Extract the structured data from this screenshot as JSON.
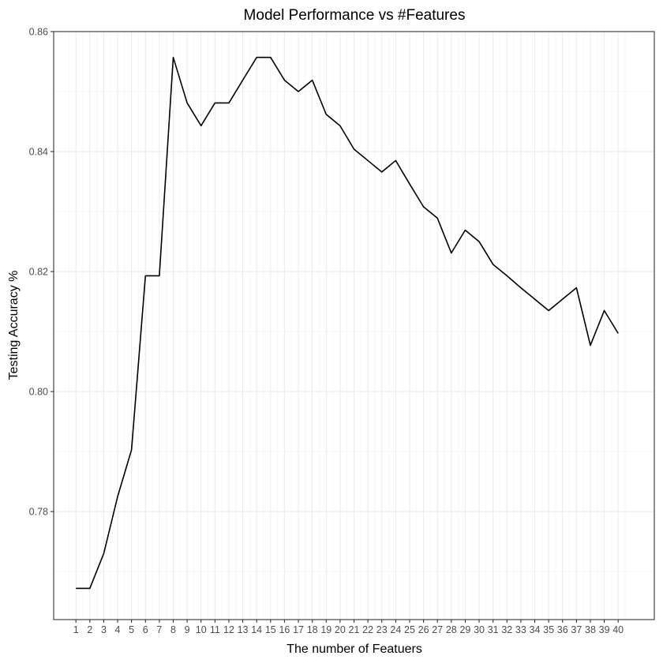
{
  "chart_data": {
    "type": "line",
    "title": "Model Performance vs #Features",
    "xlabel": "The number of Featuers",
    "ylabel": "Testing Accuracy %",
    "x": [
      1,
      2,
      3,
      4,
      5,
      6,
      7,
      8,
      9,
      10,
      11,
      12,
      13,
      14,
      15,
      16,
      17,
      18,
      19,
      20,
      21,
      22,
      23,
      24,
      25,
      26,
      27,
      28,
      29,
      30,
      31,
      32,
      33,
      34,
      35,
      36,
      37,
      38,
      39,
      40
    ],
    "series": [
      {
        "values": [
          0.7672,
          0.7672,
          0.773,
          0.7825,
          0.7903,
          0.8193,
          0.8193,
          0.8557,
          0.8481,
          0.8443,
          0.8481,
          0.8481,
          0.8519,
          0.8557,
          0.8557,
          0.8519,
          0.85,
          0.8519,
          0.8462,
          0.8443,
          0.8404,
          0.8385,
          0.8366,
          0.8385,
          0.8346,
          0.8308,
          0.8289,
          0.8231,
          0.8269,
          0.825,
          0.8212,
          0.8193,
          0.8173,
          0.8154,
          0.8135,
          0.8154,
          0.8173,
          0.8077,
          0.8135,
          0.8097
        ],
        "color": "#000000"
      }
    ],
    "xticks": [
      "1",
      "2",
      "3",
      "4",
      "5",
      "6",
      "7",
      "8",
      "9",
      "10",
      "11",
      "12",
      "13",
      "14",
      "15",
      "16",
      "17",
      "18",
      "19",
      "20",
      "21",
      "22",
      "23",
      "24",
      "25",
      "26",
      "27",
      "28",
      "29",
      "30",
      "31",
      "32",
      "33",
      "34",
      "35",
      "36",
      "37",
      "38",
      "39",
      "40"
    ],
    "yticks": [
      "0.78",
      "0.80",
      "0.82",
      "0.84",
      "0.86"
    ],
    "ytick_values": [
      0.78,
      0.8,
      0.82,
      0.84,
      0.86
    ],
    "xlim": [
      -0.6,
      42.6
    ],
    "ylim": [
      0.762,
      0.86
    ],
    "grid": true,
    "legend": "none"
  }
}
